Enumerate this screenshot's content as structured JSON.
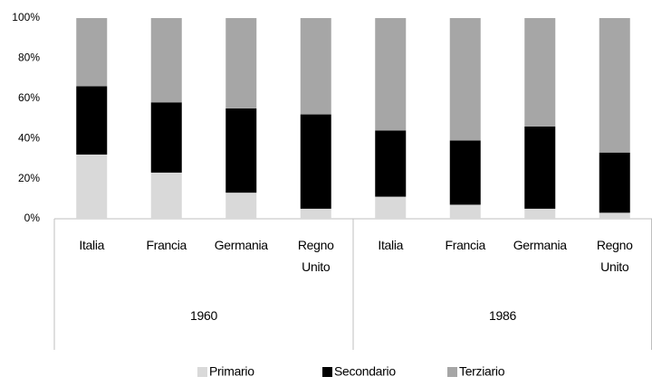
{
  "chart_data": {
    "type": "stacked_bar_100",
    "groups": [
      {
        "name": "1960",
        "categories": [
          "Italia",
          "Francia",
          "Germania",
          "Regno Unito"
        ]
      },
      {
        "name": "1986",
        "categories": [
          "Italia",
          "Francia",
          "Germania",
          "Regno Unito"
        ]
      }
    ],
    "series": [
      {
        "name": "Primario",
        "color": "#d9d9d9",
        "values": [
          32,
          23,
          13,
          5,
          11,
          7,
          5,
          3
        ]
      },
      {
        "name": "Secondario",
        "color": "#000000",
        "values": [
          34,
          35,
          42,
          47,
          33,
          32,
          41,
          30
        ]
      },
      {
        "name": "Terziario",
        "color": "#a6a6a6",
        "values": [
          34,
          42,
          45,
          48,
          56,
          61,
          54,
          67
        ]
      }
    ],
    "ylim": [
      0,
      100
    ],
    "yticks": [
      {
        "value": 0,
        "label": "0%"
      },
      {
        "value": 20,
        "label": "20%"
      },
      {
        "value": 40,
        "label": "40%"
      },
      {
        "value": 60,
        "label": "60%"
      },
      {
        "value": 80,
        "label": "80%"
      },
      {
        "value": 100,
        "label": "100%"
      }
    ],
    "grid": false,
    "legend": "bottom"
  }
}
